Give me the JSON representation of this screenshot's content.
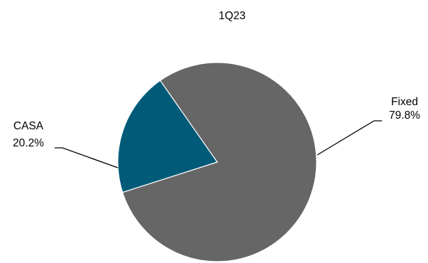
{
  "chart_data": {
    "type": "pie",
    "title": "1Q23",
    "slices": [
      {
        "name": "Fixed",
        "value": 79.8,
        "label": "79.8%",
        "color": "#666666"
      },
      {
        "name": "CASA",
        "value": 20.2,
        "label": "20.2%",
        "color": "#005a78"
      }
    ],
    "legend": "none",
    "start_angle_deg": 90,
    "direction": "clockwise"
  }
}
